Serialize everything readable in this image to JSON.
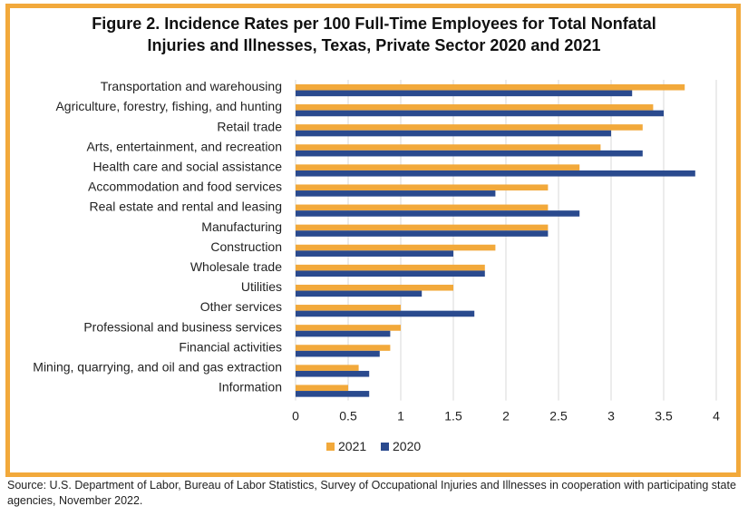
{
  "chart_data": {
    "type": "bar",
    "orientation": "horizontal",
    "title_line1": "Figure 2. Incidence Rates per 100 Full-Time Employees for Total Nonfatal",
    "title_line2": "Injuries and Illnesses, Texas, Private Sector 2020 and 2021",
    "categories": [
      "Transportation and warehousing",
      "Agriculture, forestry, fishing, and hunting",
      "Retail trade",
      "Arts, entertainment, and recreation",
      "Health care and social assistance",
      "Accommodation and food services",
      "Real estate and rental and leasing",
      "Manufacturing",
      "Construction",
      "Wholesale trade",
      "Utilities",
      "Other services",
      "Professional and business services",
      "Financial activities",
      "Mining, quarrying, and oil and gas extraction",
      "Information"
    ],
    "series": [
      {
        "name": "2021",
        "color": "#f2a93b",
        "values": [
          3.7,
          3.4,
          3.3,
          2.9,
          2.7,
          2.4,
          2.4,
          2.4,
          1.9,
          1.8,
          1.5,
          1.0,
          1.0,
          0.9,
          0.6,
          0.5
        ]
      },
      {
        "name": "2020",
        "color": "#2a4a8e",
        "values": [
          3.2,
          3.5,
          3.0,
          3.3,
          3.8,
          1.9,
          2.7,
          2.4,
          1.5,
          1.8,
          1.2,
          1.7,
          0.9,
          0.8,
          0.7,
          0.7
        ]
      }
    ],
    "xlim": [
      0,
      4
    ],
    "xticks": [
      "0",
      "0.5",
      "1",
      "1.5",
      "2",
      "2.5",
      "3",
      "3.5",
      "4"
    ],
    "grid": "vertical",
    "legend_position": "bottom"
  },
  "source_text": "Source: U.S. Department of Labor, Bureau of Labor Statistics, Survey of Occupational Injuries and Illnesses in cooperation with participating state agencies, November 2022."
}
